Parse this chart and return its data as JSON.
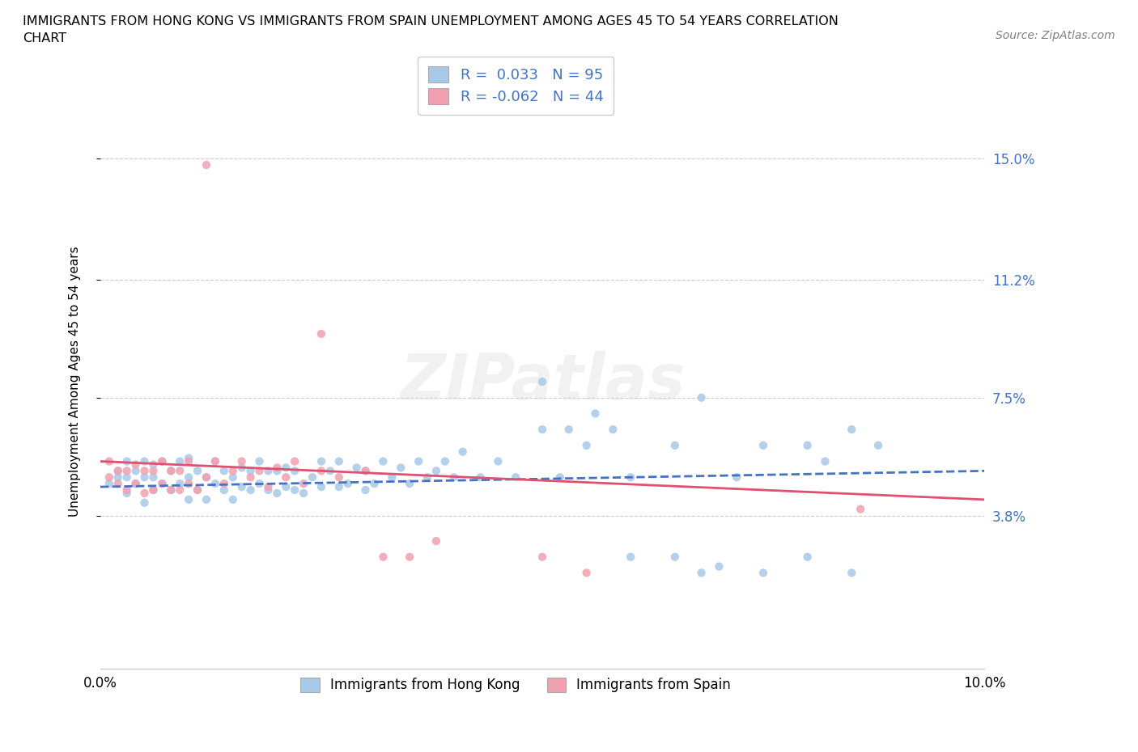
{
  "title": "IMMIGRANTS FROM HONG KONG VS IMMIGRANTS FROM SPAIN UNEMPLOYMENT AMONG AGES 45 TO 54 YEARS CORRELATION\nCHART",
  "source": "Source: ZipAtlas.com",
  "ylabel": "Unemployment Among Ages 45 to 54 years",
  "xlim": [
    0.0,
    0.1
  ],
  "ylim": [
    -0.01,
    0.17
  ],
  "yticks": [
    0.038,
    0.075,
    0.112,
    0.15
  ],
  "ytick_labels": [
    "3.8%",
    "7.5%",
    "11.2%",
    "15.0%"
  ],
  "xticks": [
    0.0,
    0.02,
    0.04,
    0.06,
    0.08,
    0.1
  ],
  "xtick_labels": [
    "0.0%",
    "",
    "",
    "",
    "",
    "10.0%"
  ],
  "hk_color": "#a8c8e8",
  "spain_color": "#f0a0b0",
  "hk_line_color": "#4472c4",
  "spain_line_color": "#e05070",
  "hk_R": 0.033,
  "hk_N": 95,
  "spain_R": -0.062,
  "spain_N": 44,
  "watermark": "ZIPatlas",
  "hk_line_x": [
    0.0,
    0.1
  ],
  "hk_line_y": [
    0.047,
    0.052
  ],
  "spain_line_x": [
    0.0,
    0.1
  ],
  "spain_line_y": [
    0.055,
    0.043
  ],
  "hk_x": [
    0.001,
    0.002,
    0.002,
    0.003,
    0.003,
    0.003,
    0.004,
    0.004,
    0.005,
    0.005,
    0.005,
    0.006,
    0.006,
    0.006,
    0.007,
    0.007,
    0.008,
    0.008,
    0.009,
    0.009,
    0.01,
    0.01,
    0.01,
    0.011,
    0.011,
    0.012,
    0.012,
    0.013,
    0.013,
    0.014,
    0.014,
    0.015,
    0.015,
    0.016,
    0.016,
    0.017,
    0.017,
    0.018,
    0.018,
    0.019,
    0.019,
    0.02,
    0.02,
    0.021,
    0.021,
    0.022,
    0.022,
    0.023,
    0.024,
    0.025,
    0.025,
    0.026,
    0.027,
    0.027,
    0.028,
    0.029,
    0.03,
    0.03,
    0.031,
    0.032,
    0.033,
    0.034,
    0.035,
    0.036,
    0.037,
    0.038,
    0.039,
    0.04,
    0.041,
    0.043,
    0.045,
    0.047,
    0.05,
    0.052,
    0.055,
    0.058,
    0.06,
    0.065,
    0.068,
    0.072,
    0.075,
    0.08,
    0.082,
    0.085,
    0.088,
    0.05,
    0.053,
    0.056,
    0.06,
    0.065,
    0.068,
    0.07,
    0.075,
    0.08,
    0.085
  ],
  "hk_y": [
    0.048,
    0.05,
    0.052,
    0.045,
    0.05,
    0.055,
    0.048,
    0.052,
    0.042,
    0.05,
    0.055,
    0.046,
    0.05,
    0.054,
    0.048,
    0.055,
    0.046,
    0.052,
    0.048,
    0.055,
    0.043,
    0.05,
    0.056,
    0.046,
    0.052,
    0.043,
    0.05,
    0.048,
    0.055,
    0.046,
    0.052,
    0.043,
    0.05,
    0.047,
    0.053,
    0.046,
    0.052,
    0.048,
    0.055,
    0.046,
    0.052,
    0.045,
    0.052,
    0.047,
    0.053,
    0.046,
    0.052,
    0.045,
    0.05,
    0.055,
    0.047,
    0.052,
    0.047,
    0.055,
    0.048,
    0.053,
    0.046,
    0.052,
    0.048,
    0.055,
    0.05,
    0.053,
    0.048,
    0.055,
    0.05,
    0.052,
    0.055,
    0.05,
    0.058,
    0.05,
    0.055,
    0.05,
    0.065,
    0.05,
    0.06,
    0.065,
    0.05,
    0.06,
    0.075,
    0.05,
    0.06,
    0.06,
    0.055,
    0.065,
    0.06,
    0.08,
    0.065,
    0.07,
    0.025,
    0.025,
    0.02,
    0.022,
    0.02,
    0.025,
    0.02
  ],
  "spain_x": [
    0.001,
    0.001,
    0.002,
    0.002,
    0.003,
    0.003,
    0.004,
    0.004,
    0.005,
    0.005,
    0.006,
    0.006,
    0.007,
    0.007,
    0.008,
    0.008,
    0.009,
    0.009,
    0.01,
    0.01,
    0.011,
    0.012,
    0.013,
    0.014,
    0.015,
    0.016,
    0.017,
    0.018,
    0.019,
    0.02,
    0.021,
    0.022,
    0.023,
    0.025,
    0.027,
    0.03,
    0.032,
    0.035,
    0.038,
    0.05,
    0.055,
    0.086,
    0.012,
    0.025
  ],
  "spain_y": [
    0.05,
    0.055,
    0.048,
    0.052,
    0.046,
    0.052,
    0.048,
    0.054,
    0.045,
    0.052,
    0.046,
    0.052,
    0.048,
    0.055,
    0.046,
    0.052,
    0.046,
    0.052,
    0.048,
    0.055,
    0.046,
    0.05,
    0.055,
    0.048,
    0.052,
    0.055,
    0.05,
    0.052,
    0.047,
    0.053,
    0.05,
    0.055,
    0.048,
    0.052,
    0.05,
    0.052,
    0.025,
    0.025,
    0.03,
    0.025,
    0.02,
    0.04,
    0.148,
    0.095
  ]
}
